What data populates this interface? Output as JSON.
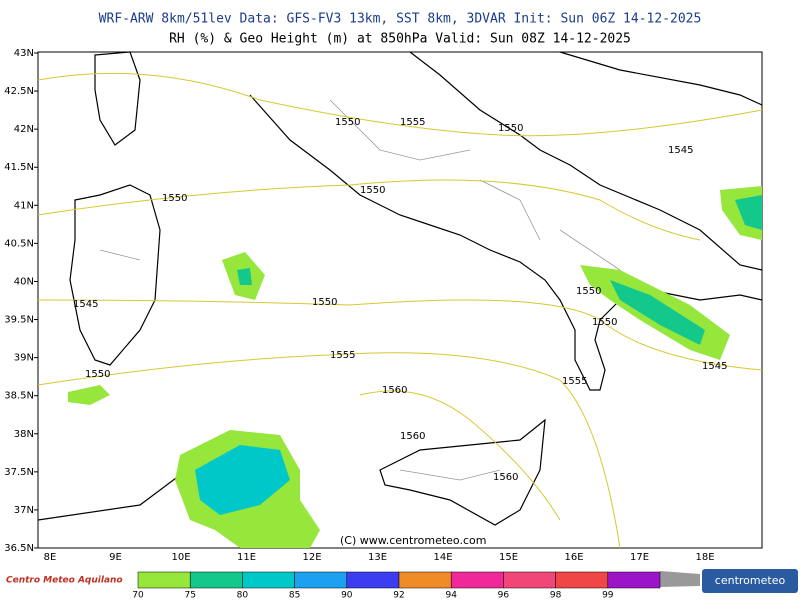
{
  "header": {
    "line1": "WRF-ARW 8km/51lev  Data: GFS-FV3 13km, SST 8km, 3DVAR  Init: Sun 06Z 14-12-2025",
    "line2": "RH (%) & Geo Height (m) at 850hPa  Valid: Sun 08Z 14-12-2025"
  },
  "lat_labels": [
    "43N",
    "42.5N",
    "42N",
    "41.5N",
    "41N",
    "40.5N",
    "40N",
    "39.5N",
    "39N",
    "38.5N",
    "38N",
    "37.5N",
    "37N",
    "36.5N"
  ],
  "lon_labels": [
    "8E",
    "9E",
    "10E",
    "11E",
    "12E",
    "13E",
    "14E",
    "15E",
    "16E",
    "17E",
    "18E"
  ],
  "contour_labels": [
    "1550",
    "1555",
    "1550",
    "1545",
    "1550",
    "1550",
    "1545",
    "1550",
    "1550",
    "1550",
    "1555",
    "1545",
    "1550",
    "1560",
    "1555",
    "1560",
    "1560"
  ],
  "copyright": "(C) www.centrometeo.com",
  "legend": {
    "labels": [
      "70",
      "75",
      "80",
      "85",
      "90",
      "92",
      "94",
      "96",
      "98",
      "99"
    ],
    "colors": [
      "#96e63c",
      "#14c88c",
      "#00c8c8",
      "#1ea0f0",
      "#3c3cf0",
      "#f08c28",
      "#f0289a",
      "#f04678",
      "#f04646",
      "#9a14c8"
    ]
  },
  "logos": {
    "left": "Centro Meteo Aquilano",
    "right": "centrometeo"
  }
}
